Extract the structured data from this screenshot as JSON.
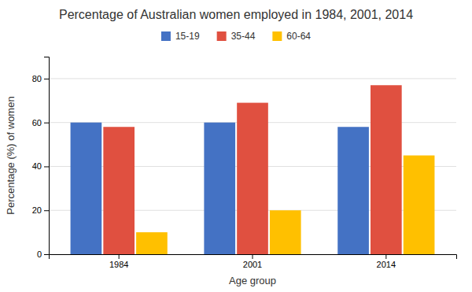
{
  "chart_data": {
    "type": "bar",
    "title": "Percentage of Australian women employed in 1984, 2001, 2014",
    "x_label": "Age group",
    "y_label": "Percentage (%) of women",
    "categories": [
      "1984",
      "2001",
      "2014"
    ],
    "series": [
      {
        "name": "15-19",
        "color": "#4472C4",
        "values": [
          60,
          60,
          58
        ]
      },
      {
        "name": "35-44",
        "color": "#E05040",
        "values": [
          58,
          69,
          77
        ]
      },
      {
        "name": "60-64",
        "color": "#FFC000",
        "values": [
          10,
          20,
          45
        ]
      }
    ],
    "ylim": [
      0,
      90
    ],
    "yticks": [
      0,
      20,
      40,
      60,
      80
    ],
    "grid": true,
    "legend": "top"
  }
}
